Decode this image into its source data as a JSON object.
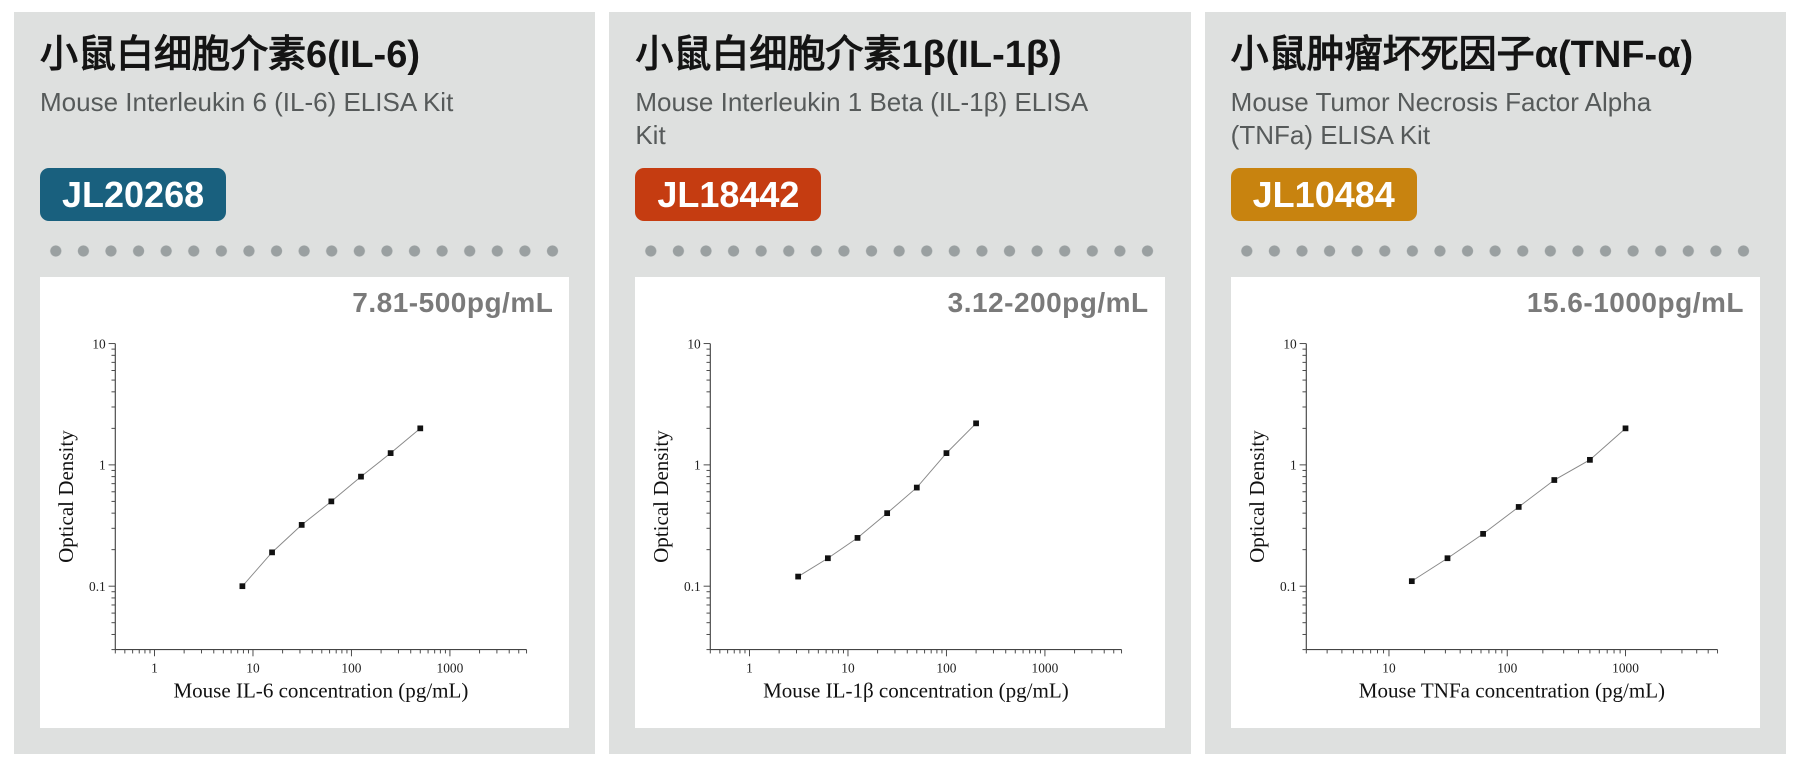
{
  "cards": [
    {
      "title_zh": "小鼠白细胞介素6(IL-6)",
      "subtitle_en": "Mouse Interleukin 6 (IL-6) ELISA Kit",
      "catalog": "JL20268",
      "badge_color": "#19607e"
    },
    {
      "title_zh": "小鼠白细胞介素1β(IL-1β)",
      "subtitle_en": "Mouse Interleukin 1 Beta (IL-1β) ELISA Kit",
      "catalog": "JL18442",
      "badge_color": "#c53c11"
    },
    {
      "title_zh": "小鼠肿瘤坏死因子α(TNF-α)",
      "subtitle_en": "Mouse Tumor Necrosis Factor Alpha (TNFa) ELISA Kit",
      "catalog": "JL10484",
      "badge_color": "#c8830f"
    }
  ],
  "colors": {
    "card_background": "#dee0df",
    "separator_dot": "#9aa0a1",
    "range_text": "#7a7a7a",
    "axis": "#444444",
    "curve_line": "#888888",
    "marker": "#111111"
  },
  "chart_data": [
    {
      "type": "line",
      "range_label": "7.81-500pg/mL",
      "xlabel": "Mouse IL-6 concentration (pg/mL)",
      "ylabel": "Optical Density",
      "xscale": "log",
      "yscale": "log",
      "x": [
        7.81,
        15.63,
        31.25,
        62.5,
        125,
        250,
        500
      ],
      "y": [
        0.1,
        0.19,
        0.32,
        0.5,
        0.8,
        1.25,
        2.0
      ],
      "xlim": [
        0.4,
        6000
      ],
      "ylim": [
        0.03,
        10
      ],
      "xticks": [
        1,
        10,
        100,
        1000
      ],
      "yticks": [
        0.1,
        1,
        10
      ],
      "grid": false,
      "marker": "square",
      "legend": null
    },
    {
      "type": "line",
      "range_label": "3.12-200pg/mL",
      "xlabel": "Mouse IL-1β concentration (pg/mL)",
      "ylabel": "Optical Density",
      "xscale": "log",
      "yscale": "log",
      "x": [
        3.12,
        6.25,
        12.5,
        25,
        50,
        100,
        200
      ],
      "y": [
        0.12,
        0.17,
        0.25,
        0.4,
        0.65,
        1.25,
        2.2
      ],
      "xlim": [
        0.4,
        6000
      ],
      "ylim": [
        0.03,
        10
      ],
      "xticks": [
        1,
        10,
        100,
        1000
      ],
      "yticks": [
        0.1,
        1,
        10
      ],
      "grid": false,
      "marker": "square",
      "legend": null
    },
    {
      "type": "line",
      "range_label": "15.6-1000pg/mL",
      "xlabel": "Mouse TNFa concentration (pg/mL)",
      "ylabel": "Optical Density",
      "xscale": "log",
      "yscale": "log",
      "x": [
        15.6,
        31.25,
        62.5,
        125,
        250,
        500,
        1000
      ],
      "y": [
        0.11,
        0.17,
        0.27,
        0.45,
        0.75,
        1.1,
        2.0
      ],
      "xlim": [
        2,
        6000
      ],
      "ylim": [
        0.03,
        10
      ],
      "xticks": [
        10,
        100,
        1000
      ],
      "yticks": [
        0.1,
        1,
        10
      ],
      "grid": false,
      "marker": "square",
      "legend": null
    }
  ]
}
